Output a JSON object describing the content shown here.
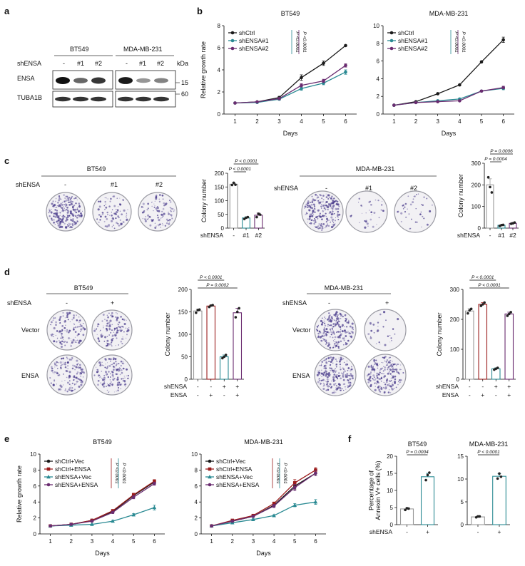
{
  "panel_labels": [
    "a",
    "b",
    "c",
    "d",
    "e",
    "f"
  ],
  "panel_a": {
    "cell_lines": [
      "BT549",
      "MDA-MB-231"
    ],
    "shrna_label": "shENSA",
    "lanes": [
      "-",
      "#1",
      "#2"
    ],
    "kda_label": "kDa",
    "proteins": [
      {
        "name": "ENSA",
        "kda": "15"
      },
      {
        "name": "TUBA1B",
        "kda": "60"
      }
    ],
    "band_intensity": {
      "BT549": {
        "ENSA": [
          1.0,
          0.55,
          0.8
        ],
        "TUBA1B": [
          1,
          1,
          1
        ]
      },
      "MDA-MB-231": {
        "ENSA": [
          0.95,
          0.3,
          0.4
        ],
        "TUBA1B": [
          1,
          1,
          1
        ]
      }
    }
  },
  "panel_c_plates": {
    "BT549": [
      1.0,
      0.35,
      0.45
    ],
    "MDA-MB-231": [
      1.0,
      0.12,
      0.15
    ]
  },
  "panel_d_plates": {
    "BT549": {
      "Vector": [
        0.55,
        0.55
      ],
      "ENSA": [
        0.6,
        0.65
      ]
    },
    "MDA-MB-231": {
      "Vector": [
        1.0,
        0.1
      ],
      "ENSA": [
        1.0,
        0.9
      ]
    }
  },
  "panel_d": {
    "shensa_label": "shENSA",
    "cols": [
      "-",
      "+"
    ],
    "rows": [
      "Vector",
      "ENSA"
    ]
  },
  "chart_data": [
    {
      "id": "b1",
      "type": "line",
      "title": "BT549",
      "xlabel": "Days",
      "ylabel": "Relative growth rate",
      "x": [
        1,
        2,
        3,
        4,
        5,
        6
      ],
      "ylim": [
        0,
        8
      ],
      "yticks": [
        0,
        2,
        4,
        6,
        8
      ],
      "series": [
        {
          "name": "shCtrl",
          "color": "#1a1a1a",
          "marker": "circle",
          "values": [
            1.0,
            1.1,
            1.5,
            3.3,
            4.6,
            6.2
          ],
          "err": [
            0.05,
            0.05,
            0.1,
            0.25,
            0.2,
            0.05
          ]
        },
        {
          "name": "shENSA#1",
          "color": "#2a8a93",
          "marker": "circle",
          "values": [
            1.0,
            1.05,
            1.35,
            2.3,
            2.8,
            3.8
          ],
          "err": [
            0.05,
            0.05,
            0.1,
            0.15,
            0.15,
            0.2
          ]
        },
        {
          "name": "shENSA#2",
          "color": "#6a2c70",
          "marker": "circle",
          "values": [
            1.0,
            1.1,
            1.4,
            2.6,
            3.0,
            4.4
          ],
          "err": [
            0.05,
            0.05,
            0.1,
            0.15,
            0.15,
            0.15
          ]
        }
      ],
      "pvals": [
        "P <0.0001",
        "P <0.0001"
      ]
    },
    {
      "id": "b2",
      "type": "line",
      "title": "MDA-MB-231",
      "xlabel": "Days",
      "ylabel": "",
      "x": [
        1,
        2,
        3,
        4,
        5,
        6
      ],
      "ylim": [
        0,
        10
      ],
      "yticks": [
        0,
        2,
        4,
        6,
        8,
        10
      ],
      "series": [
        {
          "name": "shCtrl",
          "color": "#1a1a1a",
          "marker": "circle",
          "values": [
            1.0,
            1.4,
            2.3,
            3.3,
            5.9,
            8.4
          ],
          "err": [
            0.05,
            0.05,
            0.05,
            0.05,
            0.1,
            0.3
          ]
        },
        {
          "name": "shENSA#1",
          "color": "#2a8a93",
          "marker": "circle",
          "values": [
            1.0,
            1.3,
            1.5,
            1.7,
            2.6,
            2.9
          ],
          "err": [
            0.05,
            0.05,
            0.05,
            0.05,
            0.1,
            0.15
          ]
        },
        {
          "name": "shENSA#2",
          "color": "#6a2c70",
          "marker": "circle",
          "values": [
            1.0,
            1.3,
            1.4,
            1.5,
            2.6,
            3.0
          ],
          "err": [
            0.05,
            0.05,
            0.05,
            0.05,
            0.1,
            0.15
          ]
        }
      ],
      "pvals": [
        "P <0.0001",
        "P <0.0001"
      ]
    },
    {
      "id": "c1",
      "type": "bar",
      "ylabel": "Colony number",
      "xname": "shENSA",
      "categories": [
        "-",
        "#1",
        "#2"
      ],
      "values": [
        160,
        37,
        47
      ],
      "ylim": [
        0,
        200
      ],
      "yticks": [
        0,
        50,
        100,
        150,
        200
      ],
      "colors": [
        "#999999",
        "#2a8a93",
        "#6a2c70"
      ],
      "points": [
        [
          157,
          165,
          158
        ],
        [
          33,
          38,
          40
        ],
        [
          40,
          52,
          49
        ]
      ],
      "err": [
        5,
        4,
        8
      ],
      "pvals": [
        "P < 0.0001",
        "P < 0.0001"
      ]
    },
    {
      "id": "c2",
      "type": "bar",
      "ylabel": "Colony number",
      "xname": "shENSA",
      "categories": [
        "-",
        "#1",
        "#2"
      ],
      "values": [
        200,
        13,
        22
      ],
      "ylim": [
        0,
        300
      ],
      "yticks": [
        0,
        100,
        200,
        300
      ],
      "colors": [
        "#999999",
        "#2a8a93",
        "#6a2c70"
      ],
      "points": [
        [
          235,
          190,
          165
        ],
        [
          10,
          14,
          15
        ],
        [
          20,
          22,
          26
        ]
      ],
      "err": [
        28,
        2,
        4
      ],
      "pvals": [
        "P = 0.0006",
        "P = 0.0004"
      ]
    },
    {
      "id": "d1",
      "type": "bar",
      "ylabel": "Colony number",
      "rowlabels": [
        "shENSA",
        "ENSA"
      ],
      "categories": [
        [
          "-",
          "-"
        ],
        [
          "-",
          "+"
        ],
        [
          "+",
          "-"
        ],
        [
          "+",
          "+"
        ]
      ],
      "values": [
        152,
        163,
        50,
        148
      ],
      "ylim": [
        0,
        200
      ],
      "yticks": [
        0,
        50,
        100,
        150,
        200
      ],
      "colors": [
        "#999999",
        "#9b1c1c",
        "#2a8a93",
        "#6a2c70"
      ],
      "points": [
        [
          148,
          154,
          155
        ],
        [
          161,
          164,
          165
        ],
        [
          47,
          50,
          54
        ],
        [
          138,
          150,
          158
        ]
      ],
      "err": [
        4,
        2,
        4,
        10
      ],
      "pvals": [
        "P < 0.0001",
        "P = 0.0002"
      ]
    },
    {
      "id": "d2",
      "type": "bar",
      "ylabel": "Colony number",
      "rowlabels": [
        "shENSA",
        "ENSA"
      ],
      "categories": [
        [
          "-",
          "-"
        ],
        [
          "-",
          "+"
        ],
        [
          "+",
          "-"
        ],
        [
          "+",
          "+"
        ]
      ],
      "values": [
        228,
        250,
        35,
        218
      ],
      "ylim": [
        0,
        300
      ],
      "yticks": [
        0,
        100,
        200,
        300
      ],
      "colors": [
        "#999999",
        "#9b1c1c",
        "#2a8a93",
        "#6a2c70"
      ],
      "points": [
        [
          220,
          230,
          235
        ],
        [
          245,
          250,
          256
        ],
        [
          32,
          35,
          38
        ],
        [
          212,
          218,
          224
        ]
      ],
      "err": [
        8,
        6,
        3,
        6
      ],
      "pvals": [
        "P < 0.0001",
        "P < 0.0001"
      ]
    },
    {
      "id": "e1",
      "type": "line",
      "title": "BT549",
      "xlabel": "Days",
      "ylabel": "Relative growth rate",
      "x": [
        1,
        2,
        3,
        4,
        5,
        6
      ],
      "ylim": [
        0,
        10
      ],
      "yticks": [
        0,
        2,
        4,
        6,
        8,
        10
      ],
      "series": [
        {
          "name": "shCtrl+Vec",
          "color": "#1a1a1a",
          "marker": "circle",
          "values": [
            1.0,
            1.2,
            1.7,
            2.8,
            4.8,
            6.5
          ],
          "err": [
            0.05,
            0.05,
            0.1,
            0.15,
            0.2,
            0.2
          ]
        },
        {
          "name": "shCtrl+ENSA",
          "color": "#9b1c1c",
          "marker": "square",
          "values": [
            1.0,
            1.2,
            1.7,
            2.9,
            4.9,
            6.6
          ],
          "err": [
            0.05,
            0.05,
            0.1,
            0.15,
            0.2,
            0.2
          ]
        },
        {
          "name": "shENSA+Vec",
          "color": "#2a8a93",
          "marker": "triangle",
          "values": [
            1.0,
            1.1,
            1.2,
            1.6,
            2.4,
            3.3
          ],
          "err": [
            0.05,
            0.05,
            0.05,
            0.1,
            0.15,
            0.3
          ]
        },
        {
          "name": "shENSA+ENSA",
          "color": "#6a2c70",
          "marker": "circle",
          "values": [
            1.0,
            1.2,
            1.6,
            2.7,
            4.6,
            6.3
          ],
          "err": [
            0.05,
            0.05,
            0.1,
            0.15,
            0.2,
            0.2
          ]
        }
      ],
      "pvals": [
        "P <0.0001",
        "P <0.0001"
      ]
    },
    {
      "id": "e2",
      "type": "line",
      "title": "MDA-MB-231",
      "xlabel": "Days",
      "ylabel": "",
      "x": [
        1,
        2,
        3,
        4,
        5,
        6
      ],
      "ylim": [
        0,
        10
      ],
      "yticks": [
        0,
        2,
        4,
        6,
        8,
        10
      ],
      "series": [
        {
          "name": "shCtrl+Vec",
          "color": "#1a1a1a",
          "marker": "circle",
          "values": [
            1.0,
            1.6,
            2.2,
            3.6,
            6.0,
            7.6
          ],
          "err": [
            0.05,
            0.1,
            0.1,
            0.2,
            0.4,
            0.3
          ]
        },
        {
          "name": "shCtrl+ENSA",
          "color": "#9b1c1c",
          "marker": "square",
          "values": [
            1.0,
            1.7,
            2.3,
            3.8,
            6.4,
            8.0
          ],
          "err": [
            0.05,
            0.1,
            0.1,
            0.2,
            0.4,
            0.3
          ]
        },
        {
          "name": "shENSA+Vec",
          "color": "#2a8a93",
          "marker": "triangle",
          "values": [
            1.0,
            1.4,
            1.8,
            2.3,
            3.6,
            4.0
          ],
          "err": [
            0.05,
            0.1,
            0.1,
            0.1,
            0.2,
            0.3
          ]
        },
        {
          "name": "shENSA+ENSA",
          "color": "#6a2c70",
          "marker": "circle",
          "values": [
            1.0,
            1.6,
            2.2,
            3.5,
            5.8,
            7.6
          ],
          "err": [
            0.05,
            0.1,
            0.1,
            0.2,
            0.4,
            0.3
          ]
        }
      ],
      "pvals": [
        "P <0.0001",
        "P <0.0001"
      ]
    },
    {
      "id": "f1",
      "type": "bar",
      "title": "BT549",
      "ylabel": "Percentage of\nAnnexin V+ cells (%)",
      "xname": "shENSA",
      "categories": [
        "-",
        "+"
      ],
      "values": [
        4.6,
        14.0
      ],
      "ylim": [
        0,
        20
      ],
      "yticks": [
        0,
        5,
        10,
        15,
        20
      ],
      "colors": [
        "#999999",
        "#2a8a93"
      ],
      "points": [
        [
          4.3,
          4.8,
          4.7
        ],
        [
          13.0,
          14.5,
          15.2
        ]
      ],
      "err": [
        0.3,
        1.0
      ],
      "pvals": [
        "P = 0.0004"
      ]
    },
    {
      "id": "f2",
      "type": "bar",
      "title": "MDA-MB-231",
      "ylabel": "",
      "xname": "",
      "categories": [
        "-",
        "+"
      ],
      "values": [
        1.7,
        10.6
      ],
      "ylim": [
        0,
        15
      ],
      "yticks": [
        0,
        5,
        10,
        15
      ],
      "colors": [
        "#999999",
        "#2a8a93"
      ],
      "points": [
        [
          1.6,
          1.8,
          1.8
        ],
        [
          10.1,
          11.2,
          10.5
        ]
      ],
      "err": [
        0.2,
        0.6
      ],
      "pvals": [
        "P < 0.0001"
      ]
    }
  ]
}
